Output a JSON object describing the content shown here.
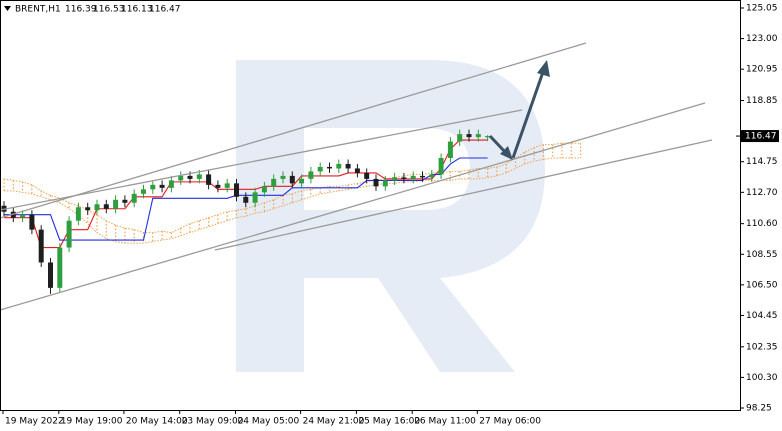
{
  "header": {
    "symbol": "BRENT,H1",
    "ohlc": [
      116.39,
      116.53,
      116.13,
      116.47
    ]
  },
  "chart_data": {
    "type": "candlestick",
    "categories": [
      "19 May 2022",
      null,
      null,
      null,
      null,
      null,
      "19 May 19:00",
      null,
      null,
      null,
      null,
      null,
      null,
      "20 May 14:00",
      null,
      null,
      null,
      null,
      null,
      "23 May 09:00",
      null,
      null,
      null,
      null,
      null,
      "24 May 05:00",
      null,
      null,
      null,
      null,
      null,
      null,
      "24 May 21:00",
      null,
      null,
      null,
      null,
      null,
      "25 May 16:00",
      null,
      null,
      null,
      null,
      null,
      "26 May 11:00",
      null,
      null,
      null,
      null,
      null,
      null,
      "27 May 06:00",
      null
    ],
    "open": [
      111.8,
      111.4,
      111.0,
      111.2,
      110.2,
      108.0,
      106.3,
      109.0,
      110.8,
      111.7,
      111.5,
      111.9,
      111.6,
      112.2,
      112.0,
      112.6,
      112.9,
      113.2,
      113.0,
      113.5,
      113.8,
      113.6,
      113.9,
      113.2,
      113.0,
      113.3,
      112.4,
      112.0,
      112.7,
      113.1,
      113.6,
      113.8,
      113.3,
      113.6,
      114.1,
      114.4,
      114.3,
      114.6,
      114.3,
      114.0,
      113.6,
      113.1,
      113.5,
      113.7,
      113.6,
      113.8,
      113.7,
      113.9,
      115.0,
      116.1,
      116.6,
      116.4,
      116.39
    ],
    "high": [
      112.1,
      111.7,
      111.5,
      111.5,
      110.5,
      108.3,
      109.3,
      111.1,
      112.0,
      112.0,
      112.2,
      112.2,
      112.5,
      112.5,
      112.9,
      113.2,
      113.5,
      113.5,
      113.8,
      114.1,
      114.1,
      114.2,
      114.2,
      113.5,
      113.6,
      113.6,
      112.7,
      113.0,
      113.4,
      113.9,
      114.1,
      114.1,
      113.9,
      114.4,
      114.7,
      114.7,
      114.9,
      114.9,
      114.6,
      114.3,
      113.9,
      113.8,
      114.0,
      114.0,
      114.1,
      114.1,
      114.2,
      115.3,
      116.4,
      116.9,
      116.9,
      116.9,
      116.53
    ],
    "low": [
      111.1,
      110.7,
      110.7,
      109.9,
      107.7,
      105.9,
      106.0,
      108.7,
      110.5,
      111.2,
      111.2,
      111.3,
      111.3,
      111.7,
      111.7,
      112.3,
      112.6,
      112.7,
      112.7,
      113.2,
      113.3,
      113.3,
      112.9,
      112.7,
      112.7,
      112.1,
      111.7,
      111.7,
      112.4,
      112.8,
      113.3,
      113.0,
      113.0,
      113.3,
      113.8,
      114.0,
      114.0,
      114.0,
      113.7,
      113.3,
      112.8,
      112.8,
      113.2,
      113.3,
      113.3,
      113.4,
      113.4,
      113.6,
      114.7,
      115.8,
      116.1,
      116.1,
      116.13
    ],
    "close": [
      111.4,
      111.0,
      111.2,
      110.2,
      108.0,
      106.3,
      109.0,
      110.8,
      111.7,
      111.5,
      111.9,
      111.6,
      112.2,
      112.0,
      112.6,
      112.9,
      113.2,
      113.0,
      113.5,
      113.8,
      113.6,
      113.9,
      113.2,
      113.0,
      113.3,
      112.4,
      112.0,
      112.7,
      113.1,
      113.6,
      113.8,
      113.3,
      113.6,
      114.1,
      114.4,
      114.3,
      114.6,
      114.3,
      114.0,
      113.6,
      113.1,
      113.5,
      113.7,
      113.6,
      113.8,
      113.7,
      113.9,
      115.0,
      116.1,
      116.6,
      116.4,
      116.6,
      116.47
    ],
    "up_color": "#2f9e3f",
    "down_color": "#1e1e1e",
    "lines": [
      {
        "color": "#e31b1b",
        "values": [
          111.0,
          111.0,
          111.0,
          111.0,
          109.0,
          109.0,
          109.0,
          110.2,
          110.2,
          110.2,
          111.6,
          111.6,
          111.6,
          111.6,
          112.4,
          112.4,
          112.4,
          112.4,
          113.4,
          113.4,
          113.4,
          113.4,
          113.4,
          112.9,
          112.9,
          112.9,
          112.9,
          112.9,
          113.1,
          113.1,
          113.1,
          113.1,
          113.8,
          113.8,
          113.8,
          113.8,
          113.8,
          114.0,
          114.0,
          114.0,
          114.0,
          113.6,
          113.6,
          113.6,
          113.6,
          113.6,
          113.6,
          114.3,
          115.6,
          116.2,
          116.2,
          116.2,
          116.2
        ]
      },
      {
        "color": "#1f2fe0",
        "values": [
          111.2,
          111.2,
          111.2,
          111.2,
          111.2,
          111.2,
          109.5,
          109.5,
          109.5,
          109.5,
          109.5,
          109.5,
          109.5,
          109.5,
          109.5,
          109.5,
          112.3,
          112.3,
          112.3,
          112.3,
          112.3,
          112.3,
          112.3,
          112.3,
          112.3,
          112.5,
          112.5,
          112.5,
          112.5,
          112.5,
          112.5,
          113.0,
          113.0,
          113.0,
          113.0,
          113.0,
          113.0,
          113.0,
          113.0,
          113.5,
          113.5,
          113.5,
          113.5,
          113.5,
          113.5,
          113.5,
          113.9,
          113.9,
          114.6,
          115.0,
          115.0,
          115.0,
          115.0
        ]
      }
    ],
    "cloud": {
      "color": "#f0a050",
      "span_a": [
        113.6,
        113.5,
        113.4,
        113.2,
        112.8,
        112.5,
        112.3,
        112.0,
        111.8,
        111.5,
        111.2,
        110.8,
        110.5,
        110.3,
        110.2,
        110.0,
        110.0,
        110.1,
        110.0,
        110.3,
        110.6,
        110.8,
        111.0,
        111.2,
        111.4,
        111.5,
        111.6,
        111.8,
        112.0,
        112.2,
        112.5,
        112.6,
        112.8,
        112.9,
        113.0,
        113.1,
        113.1,
        113.2,
        113.3,
        113.4,
        113.5,
        113.6,
        113.7,
        113.8,
        113.9,
        113.9,
        114.0,
        114.0,
        114.1,
        114.1,
        114.2,
        114.3,
        114.3,
        114.4,
        114.6,
        115.0,
        115.4,
        115.7,
        115.9,
        115.9,
        116.0,
        116.0,
        116.0
      ],
      "span_b": [
        112.8,
        112.8,
        112.7,
        112.6,
        112.4,
        112.2,
        112.0,
        111.6,
        111.2,
        110.6,
        110.0,
        109.6,
        109.4,
        109.3,
        109.3,
        109.3,
        109.4,
        109.5,
        109.6,
        109.8,
        110.0,
        110.2,
        110.4,
        110.6,
        110.8,
        111.0,
        111.1,
        111.3,
        111.4,
        111.6,
        111.8,
        112.0,
        112.2,
        112.4,
        112.6,
        112.7,
        112.8,
        112.9,
        113.0,
        113.1,
        113.2,
        113.3,
        113.3,
        113.4,
        113.4,
        113.5,
        113.5,
        113.5,
        113.5,
        113.6,
        113.6,
        113.6,
        113.7,
        113.8,
        114.0,
        114.3,
        114.6,
        114.8,
        114.9,
        115.0,
        115.0,
        115.0,
        115.0
      ]
    },
    "ylim": [
      98.25,
      125.05
    ],
    "yticks": [
      125.05,
      {
        "value": 123.0,
        "label": "123.00"
      },
      120.95,
      118.85,
      114.75,
      {
        "value": 112.7,
        "label": "112.70"
      },
      {
        "value": 110.6,
        "label": "110.60"
      },
      108.55,
      {
        "value": 106.5,
        "label": "106.50"
      },
      104.45,
      102.35,
      {
        "value": 100.3,
        "label": "100.30"
      },
      98.25
    ],
    "last_price": 116.47,
    "last_price_color": "#000000"
  }
}
